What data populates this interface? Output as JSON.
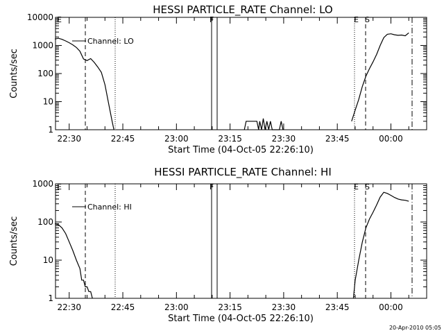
{
  "footer": {
    "timestamp": "20-Apr-2010 05:05"
  },
  "chart_data": [
    {
      "type": "line",
      "title": "HESSI PARTICLE_RATE Channel: LO",
      "xlabel": "Start Time (04-Oct-05 22:26:10)",
      "ylabel": "Counts/sec",
      "y_scale": "log",
      "ylim": [
        1,
        10000
      ],
      "y_ticks": [
        "1",
        "10",
        "100",
        "1000",
        "10000"
      ],
      "x_range": [
        "22:26:10",
        "00:10"
      ],
      "x_ticks": [
        "22:30",
        "22:45",
        "23:00",
        "23:15",
        "23:30",
        "23:45",
        "00:00"
      ],
      "legend": "Channel: LO",
      "markers": [
        "E",
        "F",
        "E",
        "S"
      ],
      "series": [
        {
          "points": [
            [
              "22:26",
              1700
            ],
            [
              "22:27",
              1800
            ],
            [
              "22:28",
              1650
            ],
            [
              "22:29",
              1450
            ],
            [
              "22:30",
              1250
            ],
            [
              "22:31",
              1050
            ],
            [
              "22:32",
              850
            ],
            [
              "22:33",
              620
            ],
            [
              "22:34",
              330
            ],
            [
              "22:35",
              290
            ],
            [
              "22:36",
              340
            ],
            [
              "22:37",
              250
            ],
            [
              "22:38",
              170
            ],
            [
              "22:39",
              110
            ],
            [
              "22:40",
              40
            ],
            [
              "22:41",
              9
            ],
            [
              "22:42",
              2
            ],
            [
              "22:42.5",
              1
            ]
          ]
        },
        {
          "points": [
            [
              "23:19",
              1
            ],
            [
              "23:19.5",
              2
            ],
            [
              "23:22.5",
              2
            ],
            [
              "23:23",
              1
            ],
            [
              "23:23.3",
              2
            ],
            [
              "23:23.8",
              1
            ],
            [
              "23:24.3",
              2.5
            ],
            [
              "23:24.8",
              1
            ],
            [
              "23:25.3",
              2
            ],
            [
              "23:25.8",
              1
            ],
            [
              "23:26.3",
              2
            ],
            [
              "23:26.8",
              1
            ],
            [
              "23:28.8",
              1
            ],
            [
              "23:29.3",
              2
            ],
            [
              "23:29.8",
              1
            ]
          ]
        },
        {
          "points": [
            [
              "23:49",
              2
            ],
            [
              "23:50",
              5
            ],
            [
              "23:51",
              12
            ],
            [
              "23:52",
              35
            ],
            [
              "23:53",
              80
            ],
            [
              "23:54",
              150
            ],
            [
              "23:55",
              260
            ],
            [
              "23:56",
              480
            ],
            [
              "23:57",
              1000
            ],
            [
              "23:58",
              1900
            ],
            [
              "23:59",
              2500
            ],
            [
              "00:00",
              2600
            ],
            [
              "00:01",
              2400
            ],
            [
              "00:02",
              2300
            ],
            [
              "00:03",
              2350
            ],
            [
              "00:04",
              2200
            ],
            [
              "00:05",
              2800
            ]
          ]
        }
      ]
    },
    {
      "type": "line",
      "title": "HESSI PARTICLE_RATE Channel: HI",
      "xlabel": "Start Time (04-Oct-05 22:26:10)",
      "ylabel": "Counts/sec",
      "y_scale": "log",
      "ylim": [
        1,
        1000
      ],
      "y_ticks": [
        "1",
        "10",
        "100",
        "1000"
      ],
      "x_range": [
        "22:26:10",
        "00:10"
      ],
      "x_ticks": [
        "22:30",
        "22:45",
        "23:00",
        "23:15",
        "23:30",
        "23:45",
        "00:00"
      ],
      "legend": "Channel: HI",
      "markers": [
        "E",
        "F",
        "E",
        "S"
      ],
      "series": [
        {
          "points": [
            [
              "22:26",
              90
            ],
            [
              "22:27",
              85
            ],
            [
              "22:28",
              70
            ],
            [
              "22:29",
              50
            ],
            [
              "22:30",
              30
            ],
            [
              "22:31",
              18
            ],
            [
              "22:32",
              10
            ],
            [
              "22:33",
              6
            ],
            [
              "22:33.5",
              3
            ],
            [
              "22:34",
              3
            ],
            [
              "22:34.5",
              2
            ],
            [
              "22:35",
              2
            ],
            [
              "22:35.5",
              1.5
            ],
            [
              "22:36",
              1.5
            ],
            [
              "22:36.5",
              1
            ]
          ]
        },
        {
          "points": [
            [
              "23:49.5",
              1
            ],
            [
              "23:50",
              3
            ],
            [
              "23:51",
              10
            ],
            [
              "23:52",
              30
            ],
            [
              "23:53",
              70
            ],
            [
              "23:54",
              120
            ],
            [
              "23:55",
              180
            ],
            [
              "23:56",
              280
            ],
            [
              "23:57",
              450
            ],
            [
              "23:58",
              600
            ],
            [
              "23:59",
              560
            ],
            [
              "00:00",
              500
            ],
            [
              "00:01",
              440
            ],
            [
              "00:02",
              400
            ],
            [
              "00:03",
              380
            ],
            [
              "00:04",
              370
            ],
            [
              "00:05",
              350
            ]
          ]
        }
      ]
    }
  ]
}
